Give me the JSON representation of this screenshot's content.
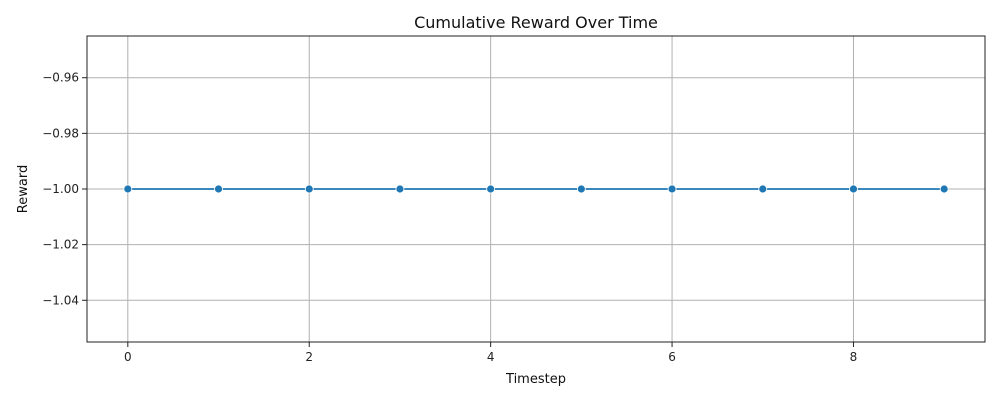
{
  "chart_data": {
    "type": "line",
    "title": "Cumulative Reward Over Time",
    "xlabel": "Timestep",
    "ylabel": "Reward",
    "x": [
      0,
      1,
      2,
      3,
      4,
      5,
      6,
      7,
      8,
      9
    ],
    "series": [
      {
        "values": [
          -1,
          -1,
          -1,
          -1,
          -1,
          -1,
          -1,
          -1,
          -1,
          -1
        ],
        "color": "#1f77b4",
        "marker": "circle"
      }
    ],
    "xlim": [
      -0.45,
      9.45
    ],
    "ylim": [
      -1.055,
      -0.945
    ],
    "xticks": [
      0,
      2,
      4,
      6,
      8
    ],
    "xtick_labels": [
      "0",
      "2",
      "4",
      "6",
      "8"
    ],
    "yticks": [
      -0.96,
      -0.98,
      -1.0,
      -1.02,
      -1.04
    ],
    "ytick_labels": [
      "−0.96",
      "−0.98",
      "−1.00",
      "−1.02",
      "−1.04"
    ],
    "grid": true,
    "grid_color": "#b0b0b0",
    "legend": false
  }
}
